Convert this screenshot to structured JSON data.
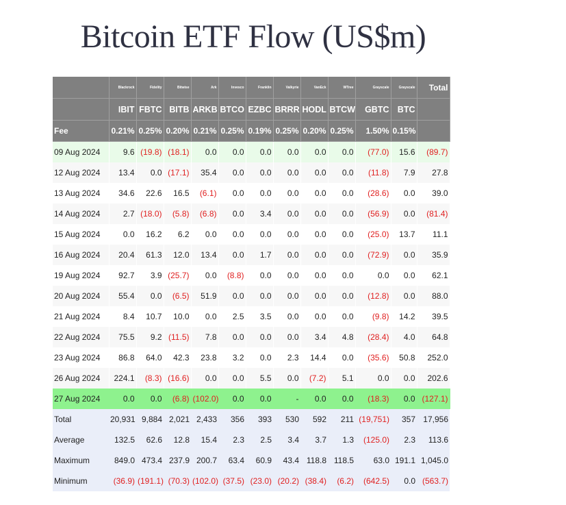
{
  "title": "Bitcoin ETF Flow (US$m)",
  "colors": {
    "header_bg": "#808080",
    "latest_row": "#8ef28e",
    "negative": "#e02020",
    "stats_bg": "#eaeef9"
  },
  "header": {
    "issuers": [
      "Blackrock",
      "Fidelity",
      "Bitwise",
      "Ark",
      "Invesco",
      "Franklin",
      "Valkyrie",
      "VanEck",
      "WTree",
      "Grayscale",
      "Grayscale"
    ],
    "total_label": "Total",
    "tickers": [
      "IBIT",
      "FBTC",
      "BITB",
      "ARKB",
      "BTCO",
      "EZBC",
      "BRRR",
      "HODL",
      "BTCW",
      "GBTC",
      "BTC"
    ],
    "fee_label": "Fee",
    "fees": [
      "0.21%",
      "0.25%",
      "0.20%",
      "0.21%",
      "0.25%",
      "0.19%",
      "0.25%",
      "0.20%",
      "0.25%",
      "1.50%",
      "0.15%"
    ]
  },
  "rows": [
    {
      "date": "09 Aug 2024",
      "values": [
        "9.6",
        "(19.8)",
        "(18.1)",
        "0.0",
        "0.0",
        "0.0",
        "0.0",
        "0.0",
        "0.0",
        "(77.0)",
        "15.6"
      ],
      "total": "(89.7)"
    },
    {
      "date": "12 Aug 2024",
      "values": [
        "13.4",
        "0.0",
        "(17.1)",
        "35.4",
        "0.0",
        "0.0",
        "0.0",
        "0.0",
        "0.0",
        "(11.8)",
        "7.9"
      ],
      "total": "27.8"
    },
    {
      "date": "13 Aug 2024",
      "values": [
        "34.6",
        "22.6",
        "16.5",
        "(6.1)",
        "0.0",
        "0.0",
        "0.0",
        "0.0",
        "0.0",
        "(28.6)",
        "0.0"
      ],
      "total": "39.0"
    },
    {
      "date": "14 Aug 2024",
      "values": [
        "2.7",
        "(18.0)",
        "(5.8)",
        "(6.8)",
        "0.0",
        "3.4",
        "0.0",
        "0.0",
        "0.0",
        "(56.9)",
        "0.0"
      ],
      "total": "(81.4)"
    },
    {
      "date": "15 Aug 2024",
      "values": [
        "0.0",
        "16.2",
        "6.2",
        "0.0",
        "0.0",
        "0.0",
        "0.0",
        "0.0",
        "0.0",
        "(25.0)",
        "13.7"
      ],
      "total": "11.1"
    },
    {
      "date": "16 Aug 2024",
      "values": [
        "20.4",
        "61.3",
        "12.0",
        "13.4",
        "0.0",
        "1.7",
        "0.0",
        "0.0",
        "0.0",
        "(72.9)",
        "0.0"
      ],
      "total": "35.9"
    },
    {
      "date": "19 Aug 2024",
      "values": [
        "92.7",
        "3.9",
        "(25.7)",
        "0.0",
        "(8.8)",
        "0.0",
        "0.0",
        "0.0",
        "0.0",
        "0.0",
        "0.0"
      ],
      "total": "62.1"
    },
    {
      "date": "20 Aug 2024",
      "values": [
        "55.4",
        "0.0",
        "(6.5)",
        "51.9",
        "0.0",
        "0.0",
        "0.0",
        "0.0",
        "0.0",
        "(12.8)",
        "0.0"
      ],
      "total": "88.0"
    },
    {
      "date": "21 Aug 2024",
      "values": [
        "8.4",
        "10.7",
        "10.0",
        "0.0",
        "2.5",
        "3.5",
        "0.0",
        "0.0",
        "0.0",
        "(9.8)",
        "14.2"
      ],
      "total": "39.5"
    },
    {
      "date": "22 Aug 2024",
      "values": [
        "75.5",
        "9.2",
        "(11.5)",
        "7.8",
        "0.0",
        "0.0",
        "0.0",
        "3.4",
        "4.8",
        "(28.4)",
        "4.0"
      ],
      "total": "64.8"
    },
    {
      "date": "23 Aug 2024",
      "values": [
        "86.8",
        "64.0",
        "42.3",
        "23.8",
        "3.2",
        "0.0",
        "2.3",
        "14.4",
        "0.0",
        "(35.6)",
        "50.8"
      ],
      "total": "252.0"
    },
    {
      "date": "26 Aug 2024",
      "values": [
        "224.1",
        "(8.3)",
        "(16.6)",
        "0.0",
        "0.0",
        "5.5",
        "0.0",
        "(7.2)",
        "5.1",
        "0.0",
        "0.0"
      ],
      "total": "202.6"
    },
    {
      "date": "27 Aug 2024",
      "values": [
        "0.0",
        "0.0",
        "(6.8)",
        "(102.0)",
        "0.0",
        "0.0",
        "-",
        "0.0",
        "0.0",
        "(18.3)",
        "0.0"
      ],
      "total": "(127.1)"
    }
  ],
  "stats": [
    {
      "label": "Total",
      "values": [
        "20,931",
        "9,884",
        "2,021",
        "2,433",
        "356",
        "393",
        "530",
        "592",
        "211",
        "(19,751)",
        "357"
      ],
      "total": "17,956"
    },
    {
      "label": "Average",
      "values": [
        "132.5",
        "62.6",
        "12.8",
        "15.4",
        "2.3",
        "2.5",
        "3.4",
        "3.7",
        "1.3",
        "(125.0)",
        "2.3"
      ],
      "total": "113.6"
    },
    {
      "label": "Maximum",
      "values": [
        "849.0",
        "473.4",
        "237.9",
        "200.7",
        "63.4",
        "60.9",
        "43.4",
        "118.8",
        "118.5",
        "63.0",
        "191.1"
      ],
      "total": "1,045.0"
    },
    {
      "label": "Minimum",
      "values": [
        "(36.9)",
        "(191.1)",
        "(70.3)",
        "(102.0)",
        "(37.5)",
        "(23.0)",
        "(20.2)",
        "(38.4)",
        "(6.2)",
        "(642.5)",
        "0.0"
      ],
      "total": "(563.7)"
    }
  ]
}
